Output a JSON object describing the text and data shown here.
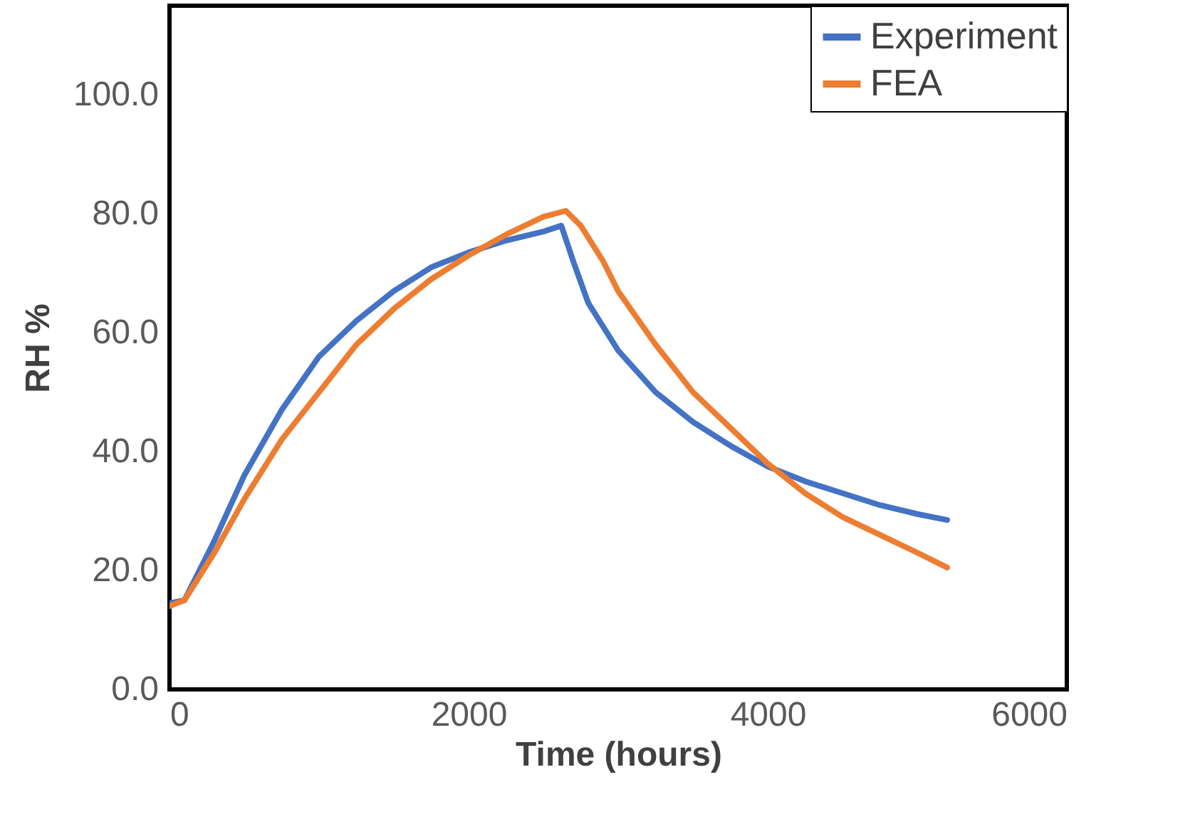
{
  "chart_data": {
    "type": "line",
    "xlabel": "Time  (hours)",
    "ylabel": "RH %",
    "series": [
      {
        "name": "Experiment",
        "color": "#4472c4",
        "x": [
          0,
          100,
          300,
          500,
          750,
          1000,
          1250,
          1500,
          1750,
          2000,
          2250,
          2500,
          2620,
          2700,
          2800,
          3000,
          3250,
          3500,
          3750,
          4000,
          4250,
          4500,
          4750,
          5000,
          5200
        ],
        "values": [
          14.5,
          15,
          25,
          36,
          47,
          56,
          62,
          67,
          71,
          73.5,
          75.5,
          77,
          78,
          72,
          65,
          57,
          50,
          45,
          41,
          37.5,
          35,
          33,
          31,
          29.5,
          28.5
        ]
      },
      {
        "name": "FEA",
        "color": "#ed7d31",
        "x": [
          0,
          100,
          300,
          500,
          750,
          1000,
          1250,
          1500,
          1750,
          2000,
          2250,
          2500,
          2650,
          2750,
          2900,
          3000,
          3250,
          3500,
          3750,
          4000,
          4250,
          4500,
          4750,
          5000,
          5200
        ],
        "values": [
          14,
          15,
          23,
          32,
          42,
          50,
          58,
          64,
          69,
          73,
          76.5,
          79.5,
          80.5,
          78,
          72,
          67,
          58,
          50,
          44,
          38,
          33,
          29,
          26,
          23,
          20.5
        ]
      }
    ],
    "xlim": [
      0,
      6000
    ],
    "xticks": [
      0,
      2000,
      4000,
      6000
    ],
    "ylim": [
      0,
      115
    ],
    "yticks": [
      {
        "value": 0,
        "label": "0.0"
      },
      {
        "value": 20,
        "label": "20.0"
      },
      {
        "value": 40,
        "label": "40.0"
      },
      {
        "value": 60,
        "label": "60.0"
      },
      {
        "value": 80,
        "label": "80.0"
      },
      {
        "value": 100,
        "label": "100.0"
      }
    ],
    "grid": false,
    "legend": "top right",
    "marker": "none",
    "line_style": "solid"
  }
}
